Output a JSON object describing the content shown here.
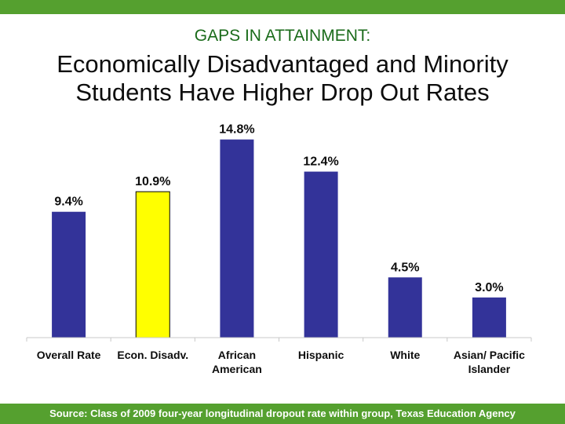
{
  "header": {
    "kicker": "GAPS IN ATTAINMENT:",
    "title_line1": "Economically Disadvantaged and Minority",
    "title_line2": "Students Have Higher Drop Out Rates"
  },
  "footer": {
    "source": "Source: Class of 2009 four-year longitudinal dropout rate within group, Texas Education Agency"
  },
  "colors": {
    "bar": "#333399",
    "highlight": "#ffff00",
    "brand_green": "#55a02f"
  },
  "chart_data": {
    "type": "bar",
    "categories": [
      [
        "Overall Rate"
      ],
      [
        "Econ. Disadv."
      ],
      [
        "African",
        "American"
      ],
      [
        "Hispanic"
      ],
      [
        "White"
      ],
      [
        "Asian/ Pacific",
        "Islander"
      ]
    ],
    "values": [
      9.4,
      10.9,
      14.8,
      12.4,
      4.5,
      3.0
    ],
    "data_labels": [
      "9.4%",
      "10.9%",
      "14.8%",
      "12.4%",
      "4.5%",
      "3.0%"
    ],
    "highlight_index": 1,
    "ylim": [
      0,
      15.6
    ],
    "grid": false,
    "legend": "none"
  }
}
